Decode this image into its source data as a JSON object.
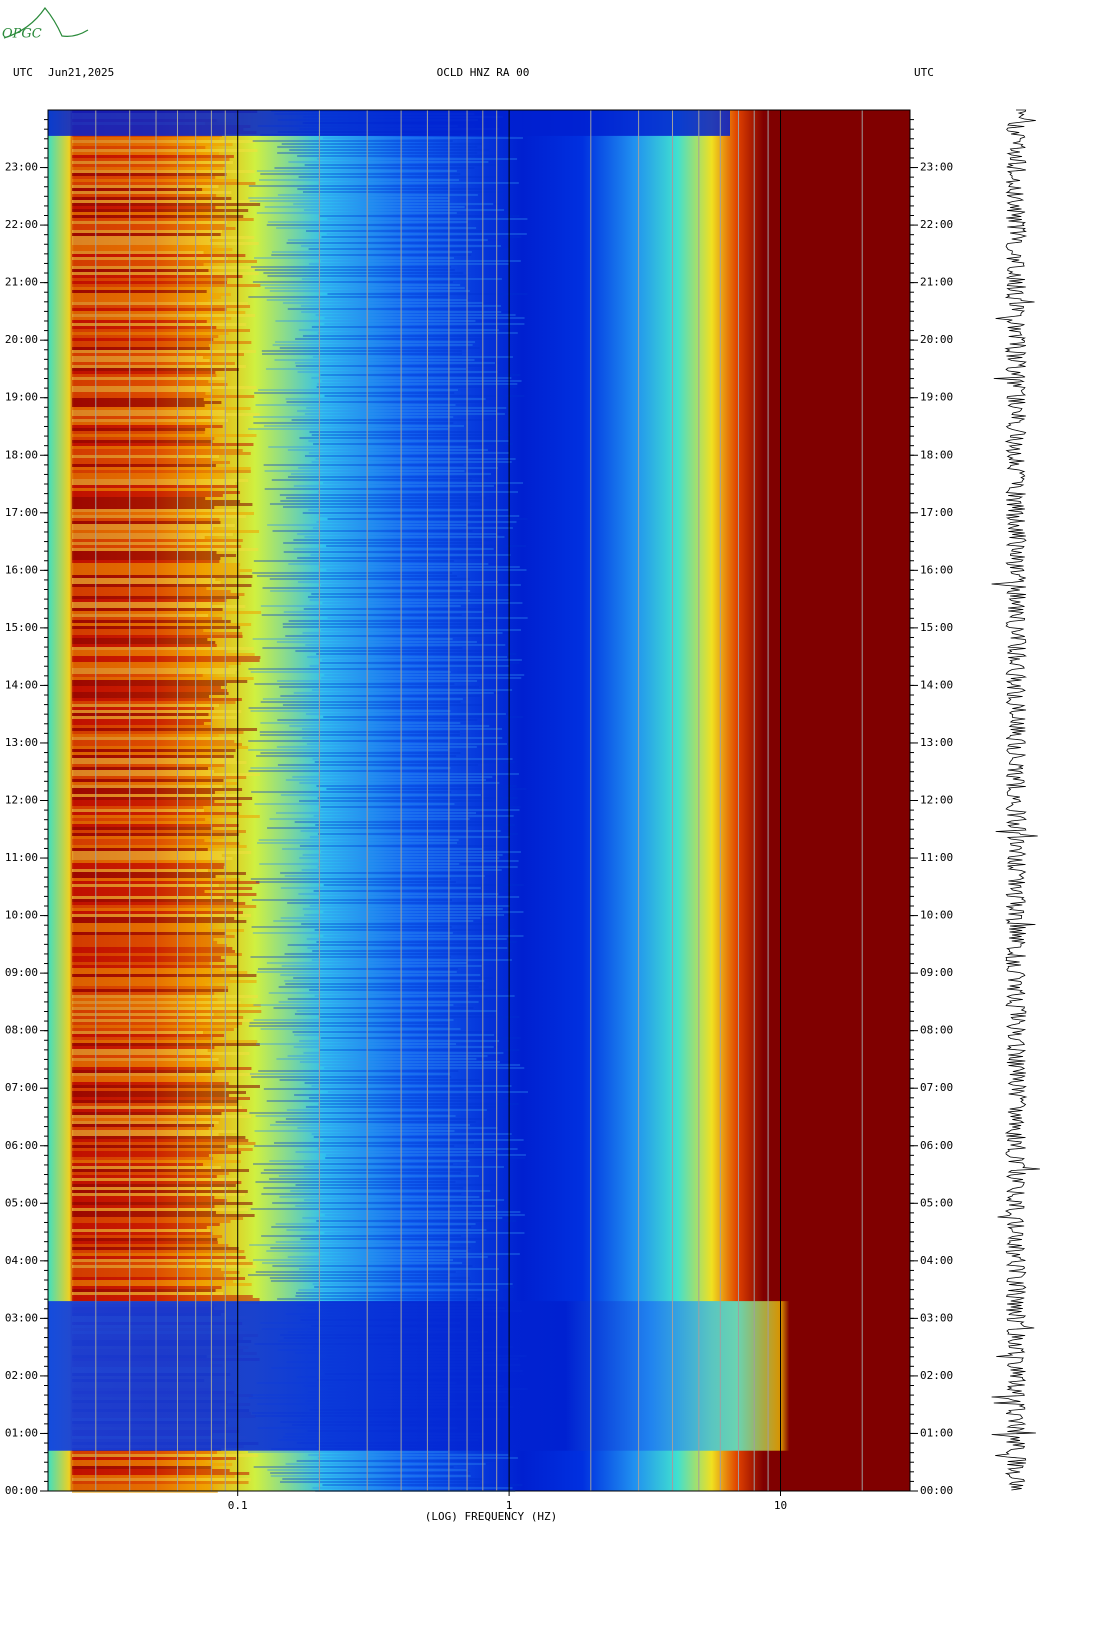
{
  "logo": "OPGC",
  "header": {
    "left_zone": "UTC",
    "date": "Jun21,2025",
    "station": "OCLD HNZ RA 00",
    "right_zone": "UTC"
  },
  "chart_data": {
    "type": "spectrogram",
    "xlabel": "(LOG) FREQUENCY (HZ)",
    "xscale": "log",
    "xlim": [
      0.02,
      30
    ],
    "xticks": [
      0.1,
      1,
      10
    ],
    "x_minor_gridlines": [
      0.03,
      0.04,
      0.05,
      0.06,
      0.07,
      0.08,
      0.09,
      0.2,
      0.3,
      0.4,
      0.5,
      0.6,
      0.7,
      0.8,
      0.9,
      2,
      3,
      4,
      5,
      6,
      7,
      8,
      9,
      20
    ],
    "ylim": [
      0,
      24
    ],
    "yticks": [
      {
        "value": 0,
        "label": "00:00"
      },
      {
        "value": 1,
        "label": "01:00"
      },
      {
        "value": 2,
        "label": "02:00"
      },
      {
        "value": 3,
        "label": "03:00"
      },
      {
        "value": 4,
        "label": "04:00"
      },
      {
        "value": 5,
        "label": "05:00"
      },
      {
        "value": 6,
        "label": "06:00"
      },
      {
        "value": 7,
        "label": "07:00"
      },
      {
        "value": 8,
        "label": "08:00"
      },
      {
        "value": 9,
        "label": "09:00"
      },
      {
        "value": 10,
        "label": "10:00"
      },
      {
        "value": 11,
        "label": "11:00"
      },
      {
        "value": 12,
        "label": "12:00"
      },
      {
        "value": 13,
        "label": "13:00"
      },
      {
        "value": 14,
        "label": "14:00"
      },
      {
        "value": 15,
        "label": "15:00"
      },
      {
        "value": 16,
        "label": "16:00"
      },
      {
        "value": 17,
        "label": "17:00"
      },
      {
        "value": 18,
        "label": "18:00"
      },
      {
        "value": 19,
        "label": "19:00"
      },
      {
        "value": 20,
        "label": "20:00"
      },
      {
        "value": 21,
        "label": "21:00"
      },
      {
        "value": 22,
        "label": "22:00"
      },
      {
        "value": 23,
        "label": "23:00"
      }
    ]
  }
}
